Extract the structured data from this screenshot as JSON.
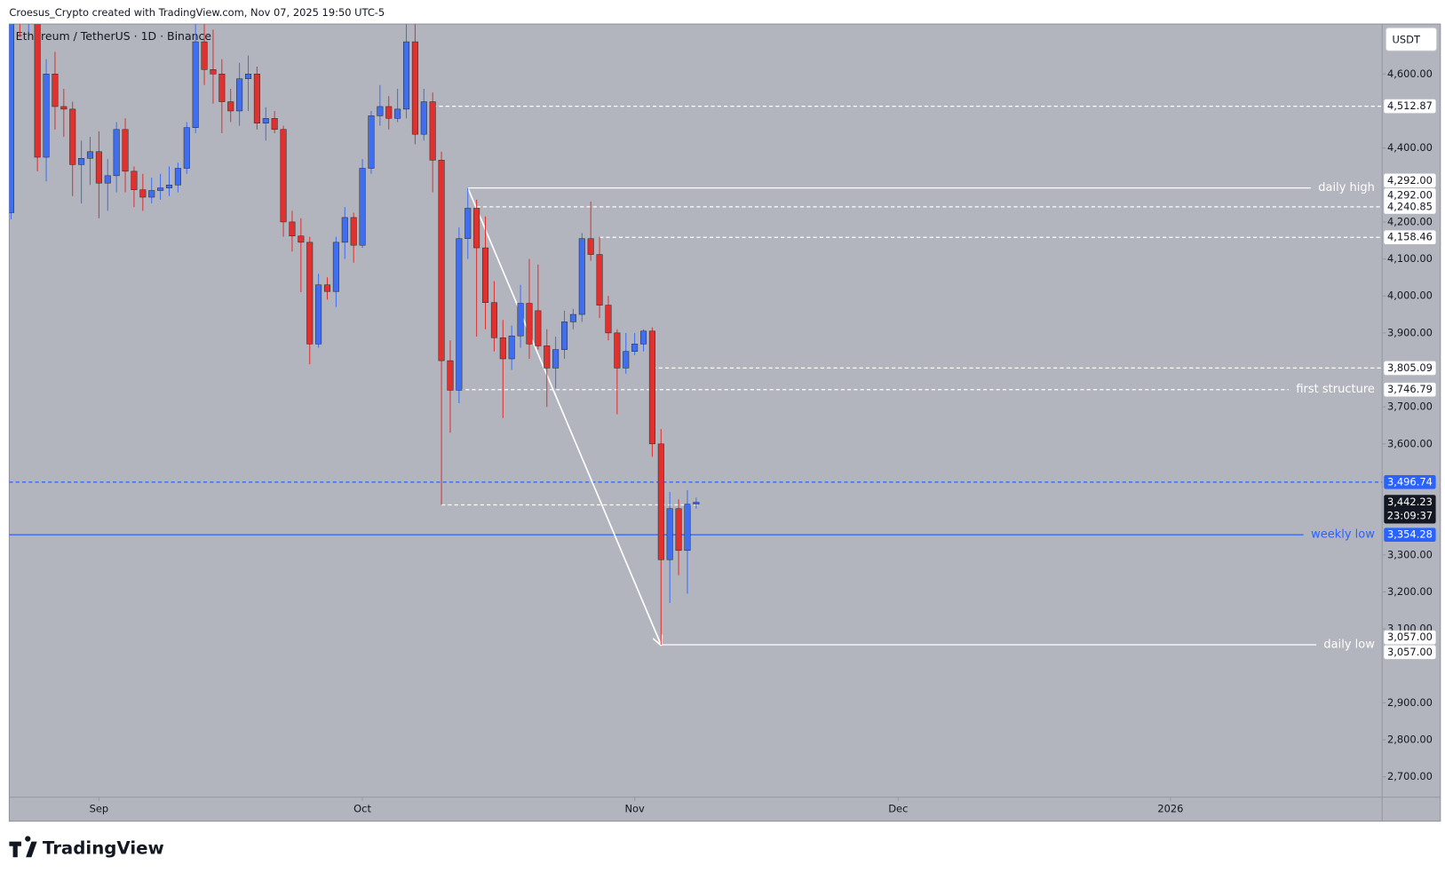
{
  "chart_data": {
    "type": "candlestick",
    "credit": "Croesus_Crypto created with TradingView.com, Nov 07, 2025 19:50 UTC-5",
    "title": "Ethereum / TetherUS · 1D · Binance",
    "currency": "USDT",
    "brand": "TradingView",
    "up_color": "#3f6ff0",
    "down_color": "#e0312f",
    "x": [
      -10,
      -9,
      -8,
      -7,
      -6,
      -5,
      -4,
      -3,
      -2,
      -1,
      0,
      1,
      2,
      3,
      4,
      5,
      6,
      7,
      8,
      9,
      10,
      11,
      12,
      13,
      14,
      15,
      16,
      17,
      18,
      19,
      20,
      21,
      22,
      23,
      24,
      25,
      26,
      27,
      28,
      29,
      30,
      31,
      32,
      33,
      34,
      35,
      36,
      37,
      38,
      39,
      40,
      41,
      42,
      43,
      44,
      45,
      46,
      47,
      48,
      49,
      50,
      51,
      52,
      53,
      54,
      55,
      56,
      57,
      58,
      59,
      60,
      61,
      62,
      63,
      64,
      65,
      66,
      67,
      68
    ],
    "open": [
      4225,
      4832,
      4779,
      4782,
      4375,
      4600,
      4512,
      4505,
      4355,
      4372,
      4390,
      4305,
      4325,
      4450,
      4337,
      4287,
      4267,
      4285,
      4292,
      4300,
      4345,
      4455,
      4687,
      4612,
      4600,
      4525,
      4500,
      4587,
      4600,
      4467,
      4480,
      4450,
      4200,
      4162,
      4145,
      3870,
      4030,
      4012,
      4145,
      4212,
      4137,
      4345,
      4487,
      4512,
      4480,
      4505,
      4687,
      4437,
      4525,
      4367,
      3825,
      3745,
      4155,
      4237,
      4130,
      3982,
      3887,
      3830,
      3892,
      3980,
      3960,
      3865,
      3805,
      3855,
      3930,
      3950,
      4155,
      4112,
      3975,
      3900,
      3805,
      3850,
      3870,
      3905,
      3600,
      3287,
      3425,
      3312,
      3437
    ],
    "high": [
      4887,
      4850,
      4956,
      4787,
      4640,
      4660,
      4560,
      4525,
      4420,
      4430,
      4445,
      4370,
      4470,
      4480,
      4350,
      4330,
      4320,
      4330,
      4350,
      4360,
      4470,
      4735,
      4740,
      4720,
      4640,
      4560,
      4630,
      4650,
      4620,
      4510,
      4500,
      4460,
      4230,
      4210,
      4160,
      4060,
      4050,
      4160,
      4240,
      4225,
      4370,
      4500,
      4570,
      4540,
      4560,
      4760,
      4755,
      4560,
      4550,
      4390,
      3880,
      4185,
      4292,
      4260,
      4215,
      4040,
      3935,
      3920,
      4030,
      4100,
      4085,
      3910,
      3890,
      3960,
      3965,
      4170,
      4255,
      4160,
      4000,
      3910,
      3900,
      3900,
      3910,
      3915,
      3640,
      3470,
      3450,
      3475,
      3455
    ],
    "low": [
      4207,
      4700,
      4712,
      4337,
      4310,
      4450,
      4430,
      4270,
      4250,
      4300,
      4210,
      4230,
      4280,
      4280,
      4240,
      4230,
      4250,
      4260,
      4270,
      4280,
      4330,
      4440,
      4570,
      4520,
      4440,
      4470,
      4460,
      4500,
      4450,
      4420,
      4440,
      4160,
      4120,
      4010,
      3815,
      3860,
      3990,
      3970,
      4100,
      4090,
      4130,
      4330,
      4460,
      4450,
      4470,
      4480,
      4410,
      4420,
      4280,
      3435,
      3630,
      3710,
      4100,
      3890,
      3910,
      3850,
      3670,
      3800,
      3860,
      3830,
      3855,
      3700,
      3750,
      3830,
      3910,
      3930,
      4095,
      3940,
      3880,
      3680,
      3790,
      3840,
      3850,
      3565,
      3057,
      3170,
      3245,
      3195,
      3425
    ],
    "close": [
      4832,
      4779,
      4782,
      4375,
      4600,
      4512,
      4505,
      4355,
      4372,
      4390,
      4305,
      4325,
      4450,
      4337,
      4287,
      4267,
      4285,
      4292,
      4300,
      4345,
      4455,
      4687,
      4612,
      4600,
      4525,
      4500,
      4587,
      4600,
      4467,
      4480,
      4450,
      4200,
      4162,
      4145,
      3870,
      4030,
      4012,
      4145,
      4212,
      4137,
      4345,
      4487,
      4512,
      4480,
      4505,
      4687,
      4437,
      4525,
      4367,
      3825,
      3745,
      4155,
      4237,
      4130,
      3982,
      3887,
      3830,
      3892,
      3980,
      3870,
      3865,
      3805,
      3855,
      3930,
      3950,
      4155,
      4112,
      3975,
      3900,
      3805,
      3850,
      3870,
      3905,
      3600,
      3287,
      3425,
      3312,
      3437,
      3442.23
    ],
    "xlim": [
      -10.21,
      146.1
    ],
    "xticks": [
      {
        "value": 0,
        "label": "Sep"
      },
      {
        "value": 30,
        "label": "Oct"
      },
      {
        "value": 61,
        "label": "Nov"
      },
      {
        "value": 91,
        "label": "Dec"
      },
      {
        "value": 122,
        "label": "2026"
      }
    ],
    "ylim": [
      2645,
      4735
    ],
    "yticks": [
      {
        "value": 4600,
        "label": "4,600.00"
      },
      {
        "value": 4400,
        "label": "4,400.00"
      },
      {
        "value": 4200,
        "label": "4,200.00"
      },
      {
        "value": 4100,
        "label": "4,100.00"
      },
      {
        "value": 4000,
        "label": "4,000.00"
      },
      {
        "value": 3900,
        "label": "3,900.00"
      },
      {
        "value": 3700,
        "label": "3,700.00"
      },
      {
        "value": 3600,
        "label": "3,600.00"
      },
      {
        "value": 3300,
        "label": "3,300.00"
      },
      {
        "value": 3200,
        "label": "3,200.00"
      },
      {
        "value": 3100,
        "label": "3,100.00"
      },
      {
        "value": 2900,
        "label": "2,900.00"
      },
      {
        "value": 2800,
        "label": "2,800.00"
      },
      {
        "value": 2700,
        "label": "2,700.00"
      }
    ],
    "grid": false,
    "levels": [
      {
        "value": 4512.87,
        "labels": [
          "4,512.87"
        ],
        "start": 38,
        "style": "dashed",
        "color": "#ffffff"
      },
      {
        "value": 4292,
        "labels": [
          "4,292.00",
          "4,292.00"
        ],
        "start": 42,
        "style": "solid",
        "color": "#ffffff",
        "text": "daily high"
      },
      {
        "value": 4240.85,
        "labels": [
          "4,240.85"
        ],
        "start": 43,
        "style": "dashed",
        "color": "#ffffff"
      },
      {
        "value": 4158.46,
        "labels": [
          "4,158.46"
        ],
        "start": 57,
        "style": "dashed",
        "color": "#ffffff"
      },
      {
        "value": 3805.09,
        "labels": [
          "3,805.09"
        ],
        "start": 63,
        "style": "dashed",
        "color": "#ffffff"
      },
      {
        "value": 3746.79,
        "labels": [
          "3,746.79"
        ],
        "start": 41,
        "style": "dashed",
        "color": "#ffffff",
        "text": "first structure"
      },
      {
        "value": 3496.74,
        "labels": [
          "3,496.74"
        ],
        "style": "dashed",
        "color": "#2962ff"
      },
      {
        "value": 3435,
        "start": 39,
        "end": 68,
        "style": "dashed",
        "color": "#ffffff"
      },
      {
        "value": 3354.28,
        "labels": [
          "3,354.28"
        ],
        "style": "solid",
        "color": "#2962ff",
        "text": "weekly low"
      },
      {
        "value": 3057,
        "labels": [
          "3,057.00",
          "3,057.00"
        ],
        "start": 64,
        "style": "solid",
        "color": "#ffffff",
        "text": "daily low"
      }
    ],
    "last": {
      "value": 3442.23,
      "label": "3,442.23",
      "countdown": "23:09:37"
    },
    "arrow": {
      "from": [
        42,
        4292
      ],
      "to": [
        64,
        3057
      ],
      "color": "#ffffff"
    }
  }
}
